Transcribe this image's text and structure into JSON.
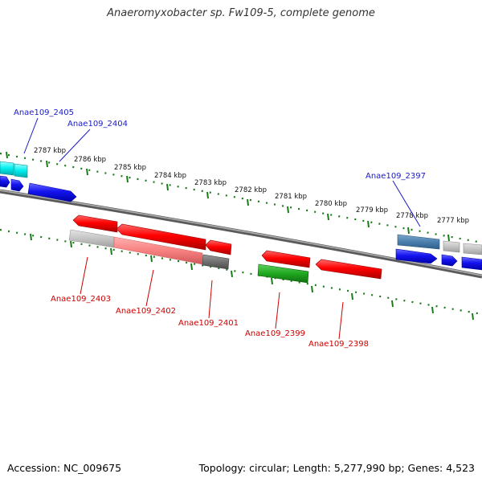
{
  "title": "Anaeromyxobacter sp. Fw109-5, complete genome",
  "footer": {
    "accession": "Accession: NC_009675",
    "summary": "Topology: circular; Length: 5,277,990 bp; Genes: 4,523"
  },
  "ticks": [
    "2787 kbp",
    "2786 kbp",
    "2785 kbp",
    "2784 kbp",
    "2783 kbp",
    "2782 kbp",
    "2781 kbp",
    "2780 kbp",
    "2779 kbp",
    "2778 kbp",
    "2777 kbp"
  ],
  "labels_top": [
    "Anae109_2405",
    "Anae109_2404",
    "Anae109_2397"
  ],
  "labels_bottom": [
    "Anae109_2403",
    "Anae109_2402",
    "Anae109_2401",
    "Anae109_2399",
    "Anae109_2398"
  ],
  "colors": {
    "label_top": "#1a1ac8",
    "label_bottom": "#cc0000",
    "tick": "#1a7a1a",
    "backbone": "#8a8a8a"
  }
}
